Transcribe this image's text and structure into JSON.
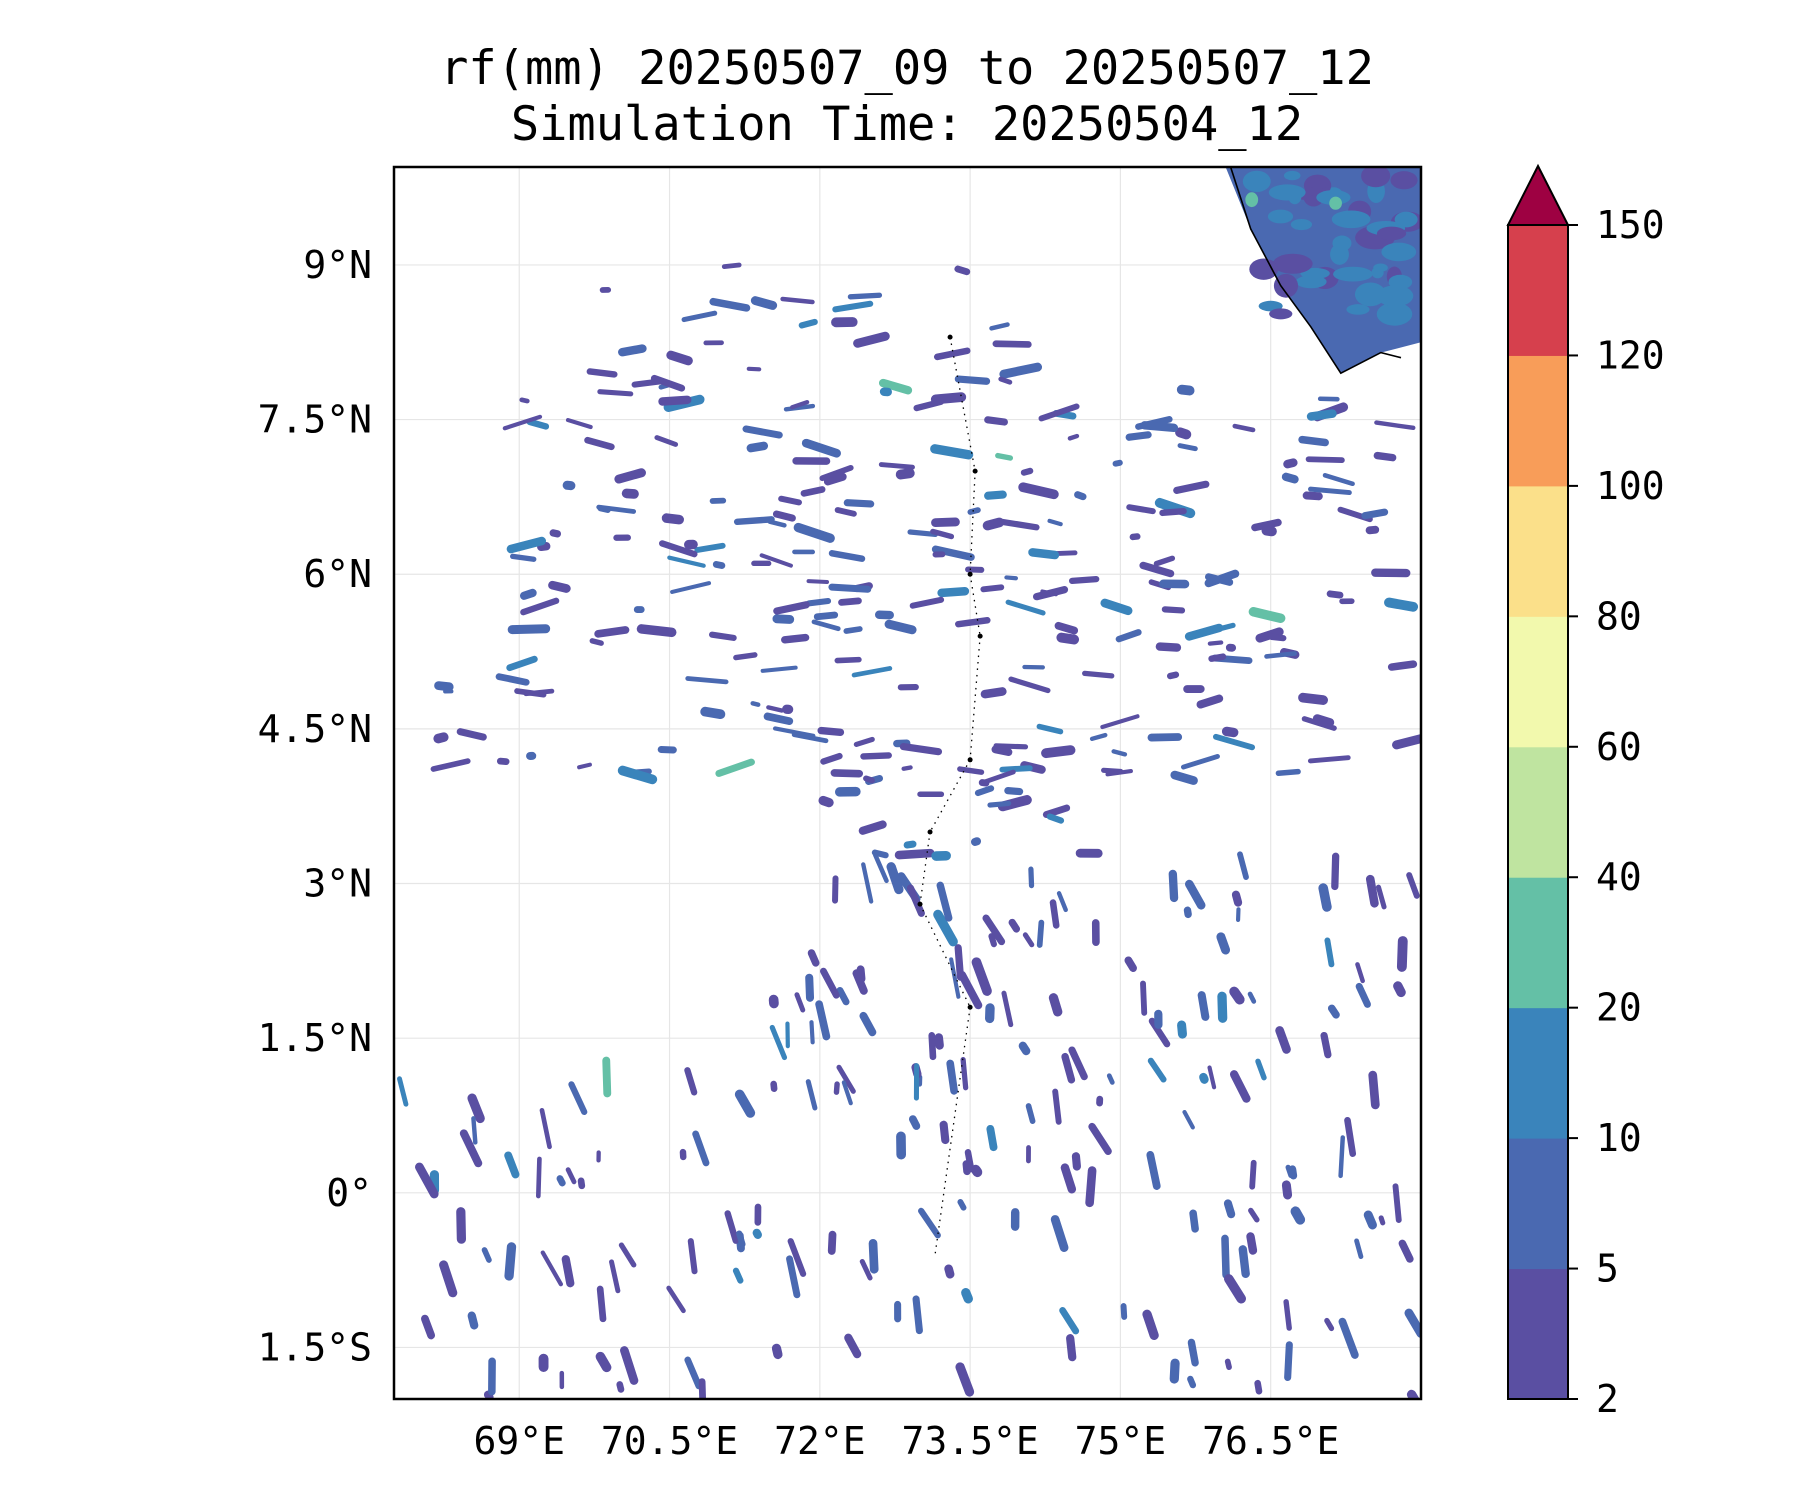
{
  "title": {
    "line1": "rf(mm) 20250507_09 to 20250507_12",
    "line2": "Simulation Time: 20250504_12"
  },
  "map": {
    "lon_range": [
      67.75,
      78.0
    ],
    "lat_range": [
      -2.0,
      9.95
    ],
    "x_ticks": [
      {
        "value": 69.0,
        "label": "69°E"
      },
      {
        "value": 70.5,
        "label": "70.5°E"
      },
      {
        "value": 72.0,
        "label": "72°E"
      },
      {
        "value": 73.5,
        "label": "73.5°E"
      },
      {
        "value": 75.0,
        "label": "75°E"
      },
      {
        "value": 76.5,
        "label": "76.5°E"
      }
    ],
    "y_ticks": [
      {
        "value": 9.0,
        "label": "9°N"
      },
      {
        "value": 7.5,
        "label": "7.5°N"
      },
      {
        "value": 6.0,
        "label": "6°N"
      },
      {
        "value": 4.5,
        "label": "4.5°N"
      },
      {
        "value": 3.0,
        "label": "3°N"
      },
      {
        "value": 1.5,
        "label": "1.5°N"
      },
      {
        "value": 0.0,
        "label": "0°"
      },
      {
        "value": -1.5,
        "label": "1.5°S"
      }
    ],
    "gridlines": true,
    "rain_bands": [
      {
        "lat_min": 7.8,
        "lat_max": 9.0,
        "lon_min": 69.5,
        "lon_max": 74.5,
        "density": 0.35,
        "wave": 0.1
      },
      {
        "lat_min": 6.3,
        "lat_max": 7.9,
        "lon_min": 69.0,
        "lon_max": 77.8,
        "density": 0.55,
        "wave": 0.18
      },
      {
        "lat_min": 5.0,
        "lat_max": 6.3,
        "lon_min": 68.8,
        "lon_max": 78.0,
        "density": 0.62,
        "wave": 0.2
      },
      {
        "lat_min": 4.0,
        "lat_max": 5.0,
        "lon_min": 67.75,
        "lon_max": 78.0,
        "density": 0.45,
        "wave": 0.3
      },
      {
        "lat_min": 3.2,
        "lat_max": 4.6,
        "lon_min": 71.8,
        "lon_max": 75.0,
        "density": 0.5,
        "wave": 0.3
      },
      {
        "lat_min": 1.0,
        "lat_max": 3.2,
        "lon_min": 71.5,
        "lon_max": 78.0,
        "density": 0.5,
        "wave": 0.6
      },
      {
        "lat_min": -2.0,
        "lat_max": 1.2,
        "lon_min": 67.75,
        "lon_max": 78.0,
        "density": 0.32,
        "wave": 0.6
      }
    ],
    "coastline": [
      [
        77.8,
        8.1
      ],
      [
        77.6,
        8.15
      ],
      [
        77.2,
        7.95
      ],
      [
        76.9,
        8.4
      ],
      [
        76.6,
        8.8
      ],
      [
        76.3,
        9.35
      ],
      [
        76.1,
        9.95
      ]
    ],
    "islands": [
      [
        73.3,
        8.3
      ],
      [
        73.55,
        7.0
      ],
      [
        73.5,
        6.0
      ],
      [
        73.6,
        5.4
      ],
      [
        73.5,
        4.2
      ],
      [
        73.1,
        3.5
      ],
      [
        73.0,
        2.8
      ],
      [
        73.5,
        1.8
      ],
      [
        73.15,
        -0.6
      ]
    ]
  },
  "colorbar": {
    "levels": [
      2,
      5,
      10,
      20,
      40,
      60,
      80,
      100,
      120,
      150
    ],
    "labels": [
      "2",
      "5",
      "10",
      "20",
      "40",
      "60",
      "80",
      "100",
      "120",
      "150"
    ],
    "colors": [
      "#5a4fa2",
      "#4a69b1",
      "#3a84bb",
      "#64c0a6",
      "#bfe4a0",
      "#f2f9ad",
      "#fbe08a",
      "#f89d59",
      "#d6404d"
    ],
    "extend_color": "#9e0142",
    "extend": "max"
  }
}
